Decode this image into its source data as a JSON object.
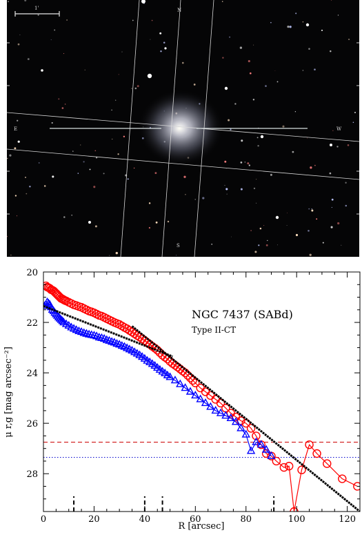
{
  "image_panel": {
    "scale_bar_label": "1'",
    "compass": {
      "north": "N",
      "east": "E",
      "west": "W",
      "south": "S"
    },
    "colors": {
      "sky": "#050506",
      "grid": "#d8d8d8",
      "galaxy": "#c9c9d6"
    }
  },
  "chart_data": {
    "type": "scatter",
    "title": "NGC 7437 (SABd)",
    "subtitle": "Type II-CT",
    "xlabel": "R [arcsec]",
    "ylabel": "μ r,g [mag arcsec⁻²]",
    "xlim": [
      0,
      125
    ],
    "ylim": [
      29.5,
      20
    ],
    "y_inverted": true,
    "x_ticks": [
      0,
      20,
      40,
      60,
      80,
      100,
      120
    ],
    "y_ticks": [
      20,
      22,
      24,
      26,
      28
    ],
    "grid": false,
    "series": [
      {
        "name": "r",
        "color": "#ff0000",
        "marker": "circle",
        "points": [
          [
            1,
            20.55
          ],
          [
            1.5,
            20.6
          ],
          [
            2,
            20.62
          ],
          [
            2.5,
            20.65
          ],
          [
            3,
            20.7
          ],
          [
            3.5,
            20.72
          ],
          [
            4,
            20.75
          ],
          [
            4.5,
            20.8
          ],
          [
            5,
            20.85
          ],
          [
            5.5,
            20.9
          ],
          [
            6,
            20.95
          ],
          [
            6.5,
            21.0
          ],
          [
            7,
            21.05
          ],
          [
            7.5,
            21.07
          ],
          [
            8,
            21.1
          ],
          [
            8.5,
            21.13
          ],
          [
            9,
            21.15
          ],
          [
            10,
            21.2
          ],
          [
            11,
            21.25
          ],
          [
            12,
            21.3
          ],
          [
            13,
            21.33
          ],
          [
            14,
            21.37
          ],
          [
            15,
            21.4
          ],
          [
            16,
            21.45
          ],
          [
            17,
            21.5
          ],
          [
            18,
            21.55
          ],
          [
            19,
            21.58
          ],
          [
            20,
            21.62
          ],
          [
            21,
            21.67
          ],
          [
            22,
            21.72
          ],
          [
            23,
            21.75
          ],
          [
            24,
            21.8
          ],
          [
            25,
            21.85
          ],
          [
            26,
            21.9
          ],
          [
            27,
            21.95
          ],
          [
            28,
            22.0
          ],
          [
            29,
            22.04
          ],
          [
            30,
            22.08
          ],
          [
            31,
            22.14
          ],
          [
            32,
            22.2
          ],
          [
            33,
            22.25
          ],
          [
            34,
            22.32
          ],
          [
            35,
            22.38
          ],
          [
            36,
            22.45
          ],
          [
            37,
            22.52
          ],
          [
            38,
            22.58
          ],
          [
            39,
            22.65
          ],
          [
            40,
            22.72
          ],
          [
            41,
            22.8
          ],
          [
            42,
            22.87
          ],
          [
            43,
            22.95
          ],
          [
            44,
            23.02
          ],
          [
            45,
            23.1
          ],
          [
            46,
            23.2
          ],
          [
            47,
            23.3
          ],
          [
            48,
            23.38
          ],
          [
            49,
            23.45
          ],
          [
            50,
            23.55
          ],
          [
            51,
            23.63
          ],
          [
            52,
            23.7
          ],
          [
            53,
            23.77
          ],
          [
            54,
            23.85
          ],
          [
            55,
            23.93
          ],
          [
            56,
            24.0
          ],
          [
            57,
            24.1
          ],
          [
            58,
            24.2
          ],
          [
            59,
            24.3
          ],
          [
            60,
            24.4
          ],
          [
            62,
            24.6
          ],
          [
            64,
            24.75
          ],
          [
            66,
            24.9
          ],
          [
            68,
            25.05
          ],
          [
            70,
            25.2
          ],
          [
            72,
            25.4
          ],
          [
            74,
            25.6
          ],
          [
            76,
            25.75
          ],
          [
            78,
            25.9
          ],
          [
            80,
            26.0
          ],
          [
            82,
            26.2
          ],
          [
            84,
            26.5
          ],
          [
            86,
            26.85
          ],
          [
            88,
            27.2
          ],
          [
            90,
            27.3
          ],
          [
            92,
            27.5
          ],
          [
            95,
            27.75
          ],
          [
            97,
            27.7
          ],
          [
            99,
            29.5
          ],
          [
            102,
            27.85
          ],
          [
            105,
            26.85
          ],
          [
            108,
            27.2
          ],
          [
            112,
            27.6
          ],
          [
            118,
            28.2
          ],
          [
            124,
            28.5
          ]
        ]
      },
      {
        "name": "g",
        "color": "#0000ff",
        "marker": "triangle",
        "points": [
          [
            0.5,
            21.35
          ],
          [
            1,
            21.3
          ],
          [
            1.5,
            21.2
          ],
          [
            2,
            21.25
          ],
          [
            2.5,
            21.3
          ],
          [
            3,
            21.4
          ],
          [
            3.5,
            21.5
          ],
          [
            4,
            21.55
          ],
          [
            4.5,
            21.62
          ],
          [
            5,
            21.68
          ],
          [
            5.5,
            21.74
          ],
          [
            6,
            21.8
          ],
          [
            6.5,
            21.85
          ],
          [
            7,
            21.9
          ],
          [
            7.5,
            21.95
          ],
          [
            8,
            22.0
          ],
          [
            9,
            22.07
          ],
          [
            10,
            22.13
          ],
          [
            11,
            22.2
          ],
          [
            12,
            22.25
          ],
          [
            13,
            22.3
          ],
          [
            14,
            22.35
          ],
          [
            15,
            22.38
          ],
          [
            16,
            22.42
          ],
          [
            17,
            22.45
          ],
          [
            18,
            22.48
          ],
          [
            19,
            22.5
          ],
          [
            20,
            22.52
          ],
          [
            21,
            22.55
          ],
          [
            22,
            22.6
          ],
          [
            23,
            22.62
          ],
          [
            24,
            22.65
          ],
          [
            25,
            22.7
          ],
          [
            26,
            22.73
          ],
          [
            27,
            22.77
          ],
          [
            28,
            22.8
          ],
          [
            29,
            22.85
          ],
          [
            30,
            22.88
          ],
          [
            31,
            22.93
          ],
          [
            32,
            22.97
          ],
          [
            33,
            23.02
          ],
          [
            34,
            23.07
          ],
          [
            35,
            23.12
          ],
          [
            36,
            23.18
          ],
          [
            37,
            23.24
          ],
          [
            38,
            23.3
          ],
          [
            39,
            23.37
          ],
          [
            40,
            23.44
          ],
          [
            41,
            23.52
          ],
          [
            42,
            23.58
          ],
          [
            43,
            23.65
          ],
          [
            44,
            23.72
          ],
          [
            45,
            23.8
          ],
          [
            46,
            23.88
          ],
          [
            47,
            23.95
          ],
          [
            48,
            24.02
          ],
          [
            49,
            24.1
          ],
          [
            50,
            24.17
          ],
          [
            52,
            24.3
          ],
          [
            54,
            24.45
          ],
          [
            56,
            24.6
          ],
          [
            58,
            24.75
          ],
          [
            60,
            24.9
          ],
          [
            62,
            25.05
          ],
          [
            64,
            25.2
          ],
          [
            66,
            25.35
          ],
          [
            68,
            25.5
          ],
          [
            70,
            25.6
          ],
          [
            72,
            25.7
          ],
          [
            74,
            25.8
          ],
          [
            76,
            25.95
          ],
          [
            78,
            26.2
          ],
          [
            80,
            26.45
          ],
          [
            82,
            27.1
          ],
          [
            84,
            26.75
          ],
          [
            86,
            26.85
          ],
          [
            88,
            27.05
          ],
          [
            90,
            27.3
          ]
        ]
      },
      {
        "name": "fit",
        "color": "#000000",
        "marker": "line",
        "segments": [
          {
            "x": [
              0,
              51
            ],
            "y": [
              21.35,
              23.35
            ]
          },
          {
            "x": [
              35,
              125
            ],
            "y": [
              22.15,
              29.5
            ]
          }
        ]
      }
    ],
    "hlines": [
      {
        "y": 26.75,
        "color": "#cc0000",
        "style": "dashed"
      },
      {
        "y": 27.35,
        "color": "#0000cc",
        "style": "dotted"
      }
    ],
    "vmarks": [
      12,
      40,
      47,
      91
    ]
  }
}
